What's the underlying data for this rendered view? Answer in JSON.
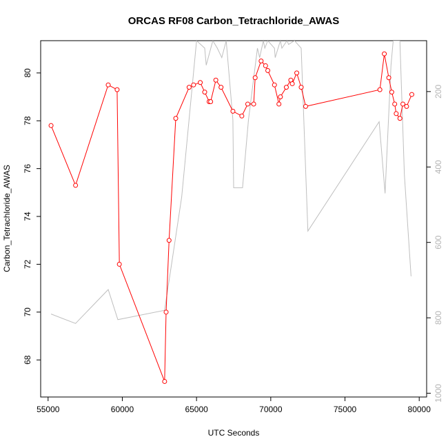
{
  "chart_data": {
    "type": "line",
    "title": "ORCAS RF08 Carbon_Tetrachloride_AWAS",
    "xlabel": "UTC Seconds",
    "ylabel": "Carbon_Tetrachloride_AWAS",
    "xlim": [
      54500,
      80500
    ],
    "ylim": [
      66.45,
      81.35
    ],
    "xticks": [
      55000,
      60000,
      65000,
      70000,
      75000,
      80000
    ],
    "yticks": [
      68,
      70,
      72,
      74,
      76,
      78,
      80
    ],
    "y2lim": [
      1010,
      65
    ],
    "y2ticks": [
      200,
      400,
      600,
      800,
      1000
    ],
    "y2_reversed": true,
    "grid": false,
    "colors": {
      "primary": "#ff0000",
      "secondary": "#bebebe",
      "axis": "#000000"
    },
    "series": [
      {
        "color": "#ff0000",
        "marker": "open-circle",
        "x": [
          55200,
          56850,
          59050,
          59650,
          59800,
          62850,
          62950,
          63150,
          63600,
          64500,
          64800,
          65250,
          65550,
          65850,
          65950,
          66300,
          66650,
          67450,
          68050,
          68450,
          68850,
          68950,
          69350,
          69650,
          69800,
          70250,
          70550,
          70650,
          71050,
          71350,
          71450,
          71750,
          72050,
          72350,
          77350,
          77650,
          77950,
          78150,
          78350,
          78450,
          78700,
          78900,
          79150,
          79500
        ],
        "y": [
          77.8,
          75.3,
          79.5,
          79.3,
          72.0,
          67.1,
          70.0,
          73.0,
          78.1,
          79.4,
          79.5,
          79.6,
          79.2,
          78.8,
          78.8,
          79.7,
          79.4,
          78.4,
          78.2,
          78.7,
          78.7,
          79.8,
          80.5,
          80.3,
          80.1,
          79.5,
          78.7,
          79.0,
          79.4,
          79.7,
          79.55,
          80.0,
          79.4,
          78.6,
          79.3,
          80.8,
          79.8,
          79.2,
          78.7,
          78.3,
          78.1,
          78.7,
          78.6,
          79.1
        ]
      },
      {
        "color": "#bebebe",
        "marker": "none",
        "axis": "right",
        "x": [
          55200,
          56850,
          59050,
          59700,
          62850,
          64000,
          65000,
          65550,
          65650,
          66100,
          66400,
          66700,
          67000,
          67450,
          67500,
          68000,
          68100,
          68500,
          69100,
          69250,
          69500,
          69600,
          69800,
          70250,
          70300,
          70650,
          70750,
          71100,
          71200,
          71600,
          72050,
          72500,
          77300,
          77700,
          78100,
          78250,
          78450,
          78700,
          79000,
          79450
        ],
        "y": [
          790,
          815,
          725,
          805,
          780,
          480,
          65,
          85,
          130,
          65,
          85,
          110,
          65,
          275,
          455,
          455,
          455,
          275,
          85,
          110,
          65,
          85,
          65,
          85,
          110,
          65,
          85,
          65,
          75,
          65,
          85,
          570,
          280,
          470,
          130,
          65,
          65,
          65,
          420,
          690
        ]
      }
    ]
  }
}
